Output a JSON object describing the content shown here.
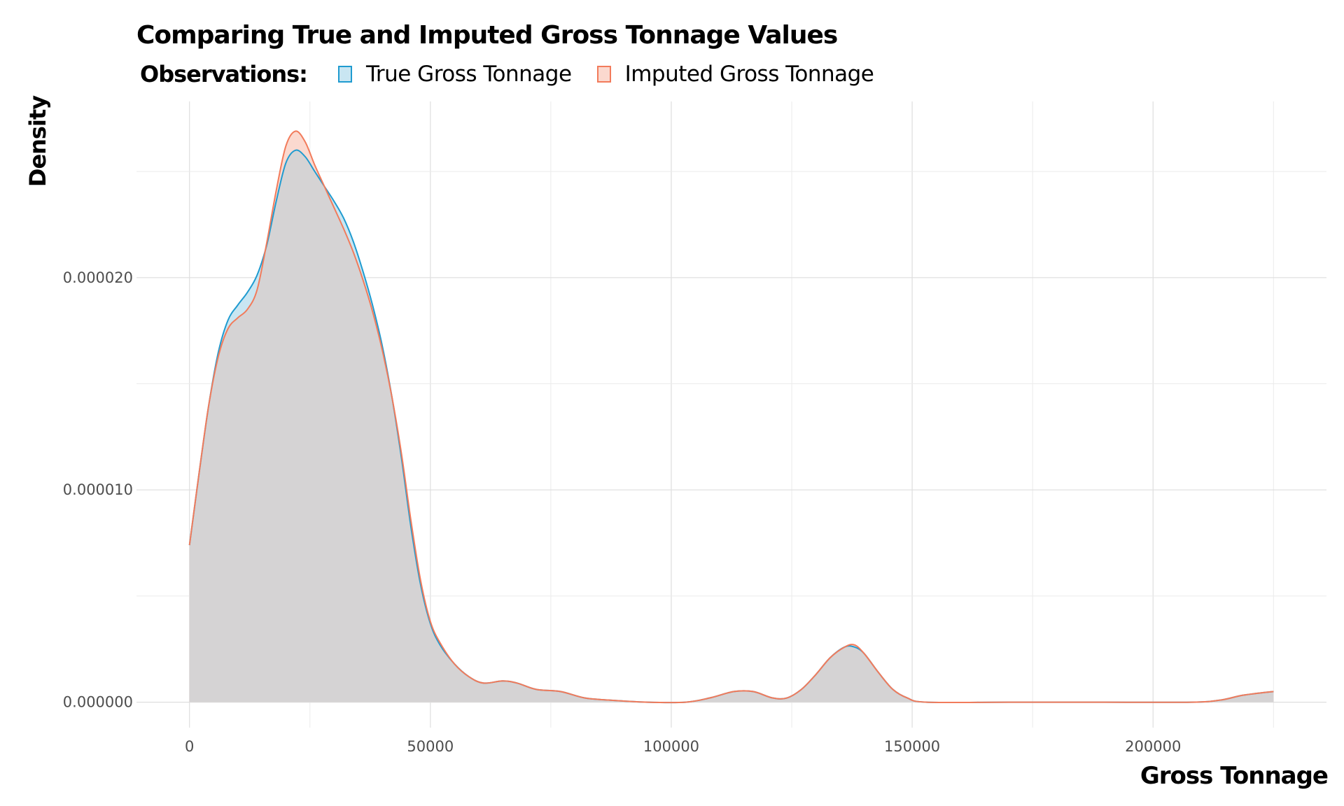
{
  "chart_data": {
    "type": "area",
    "title": "Comparing True and Imputed Gross Tonnage Values",
    "xlabel": "Gross Tonnage",
    "ylabel": "Density",
    "xlim": [
      -11000,
      236000
    ],
    "ylim": [
      -1.2e-06,
      2.83e-05
    ],
    "x_ticks": [
      0,
      50000,
      100000,
      150000,
      200000
    ],
    "x_tick_labels": [
      "0",
      "50000",
      "100000",
      "150000",
      "200000"
    ],
    "y_ticks": [
      0,
      1e-05,
      2e-05
    ],
    "y_tick_labels": [
      "0.000000",
      "0.000010",
      "0.000020"
    ],
    "grid": true,
    "legend": {
      "title": "Observations:",
      "position": "top"
    },
    "series": [
      {
        "name": "True Gross Tonnage",
        "line_color": "#1f9bd0",
        "fill_color": "#c9e6f2",
        "points": [
          [
            0,
            7.4e-06
          ],
          [
            2000,
            1.08e-05
          ],
          [
            4000,
            1.4e-05
          ],
          [
            6000,
            1.65e-05
          ],
          [
            8000,
            1.8e-05
          ],
          [
            10000,
            1.87e-05
          ],
          [
            12000,
            1.93e-05
          ],
          [
            14000,
            2.01e-05
          ],
          [
            16000,
            2.15e-05
          ],
          [
            18000,
            2.36e-05
          ],
          [
            20000,
            2.54e-05
          ],
          [
            22000,
            2.6e-05
          ],
          [
            24000,
            2.57e-05
          ],
          [
            26000,
            2.5e-05
          ],
          [
            28000,
            2.43e-05
          ],
          [
            30000,
            2.36e-05
          ],
          [
            32000,
            2.28e-05
          ],
          [
            34000,
            2.17e-05
          ],
          [
            36000,
            2.03e-05
          ],
          [
            38000,
            1.87e-05
          ],
          [
            40000,
            1.68e-05
          ],
          [
            42000,
            1.44e-05
          ],
          [
            44000,
            1.15e-05
          ],
          [
            46000,
            8.2e-06
          ],
          [
            48000,
            5.5e-06
          ],
          [
            50000,
            3.7e-06
          ],
          [
            52000,
            2.7e-06
          ],
          [
            55000,
            1.8e-06
          ],
          [
            58000,
            1.2e-06
          ],
          [
            61000,
            9e-07
          ],
          [
            65000,
            1e-06
          ],
          [
            68000,
            9e-07
          ],
          [
            72000,
            6e-07
          ],
          [
            77000,
            5e-07
          ],
          [
            82000,
            2e-07
          ],
          [
            87000,
            1e-07
          ],
          [
            95000,
            0.0
          ],
          [
            103000,
            0.0
          ],
          [
            108000,
            2e-07
          ],
          [
            113000,
            5e-07
          ],
          [
            117000,
            5e-07
          ],
          [
            121000,
            2e-07
          ],
          [
            124000,
            2e-07
          ],
          [
            127000,
            6e-07
          ],
          [
            130000,
            1.3e-06
          ],
          [
            133000,
            2.1e-06
          ],
          [
            136000,
            2.6e-06
          ],
          [
            138000,
            2.6e-06
          ],
          [
            140000,
            2.3e-06
          ],
          [
            143000,
            1.4e-06
          ],
          [
            146000,
            6e-07
          ],
          [
            149000,
            2e-07
          ],
          [
            153000,
            0.0
          ],
          [
            170000,
            0.0
          ],
          [
            190000,
            0.0
          ],
          [
            208000,
            0.0
          ],
          [
            214000,
            1e-07
          ],
          [
            218000,
            3e-07
          ],
          [
            221000,
            4e-07
          ],
          [
            225000,
            5e-07
          ]
        ]
      },
      {
        "name": "Imputed Gross Tonnage",
        "line_color": "#f27b5b",
        "fill_color": "#fbd9cf",
        "points": [
          [
            0,
            7.4e-06
          ],
          [
            2000,
            1.08e-05
          ],
          [
            4000,
            1.4e-05
          ],
          [
            6000,
            1.63e-05
          ],
          [
            8000,
            1.76e-05
          ],
          [
            10000,
            1.81e-05
          ],
          [
            12000,
            1.85e-05
          ],
          [
            14000,
            1.94e-05
          ],
          [
            16000,
            2.16e-05
          ],
          [
            18000,
            2.41e-05
          ],
          [
            20000,
            2.62e-05
          ],
          [
            22000,
            2.69e-05
          ],
          [
            24000,
            2.64e-05
          ],
          [
            26000,
            2.53e-05
          ],
          [
            28000,
            2.43e-05
          ],
          [
            30000,
            2.33e-05
          ],
          [
            32000,
            2.23e-05
          ],
          [
            34000,
            2.12e-05
          ],
          [
            36000,
            1.99e-05
          ],
          [
            38000,
            1.84e-05
          ],
          [
            40000,
            1.66e-05
          ],
          [
            42000,
            1.44e-05
          ],
          [
            44000,
            1.17e-05
          ],
          [
            46000,
            8.5e-06
          ],
          [
            48000,
            5.7e-06
          ],
          [
            50000,
            3.8e-06
          ],
          [
            52000,
            2.8e-06
          ],
          [
            55000,
            1.8e-06
          ],
          [
            58000,
            1.2e-06
          ],
          [
            61000,
            9e-07
          ],
          [
            65000,
            1e-06
          ],
          [
            68000,
            9e-07
          ],
          [
            72000,
            6e-07
          ],
          [
            77000,
            5e-07
          ],
          [
            82000,
            2e-07
          ],
          [
            87000,
            1e-07
          ],
          [
            95000,
            0.0
          ],
          [
            103000,
            0.0
          ],
          [
            108000,
            2e-07
          ],
          [
            113000,
            5e-07
          ],
          [
            117000,
            5e-07
          ],
          [
            121000,
            2e-07
          ],
          [
            124000,
            2e-07
          ],
          [
            127000,
            6e-07
          ],
          [
            130000,
            1.3e-06
          ],
          [
            133000,
            2.1e-06
          ],
          [
            136000,
            2.6e-06
          ],
          [
            138000,
            2.7e-06
          ],
          [
            140000,
            2.3e-06
          ],
          [
            143000,
            1.4e-06
          ],
          [
            146000,
            6e-07
          ],
          [
            149000,
            2e-07
          ],
          [
            153000,
            0.0
          ],
          [
            170000,
            0.0
          ],
          [
            190000,
            0.0
          ],
          [
            208000,
            0.0
          ],
          [
            214000,
            1e-07
          ],
          [
            218000,
            3e-07
          ],
          [
            221000,
            4e-07
          ],
          [
            225000,
            5e-07
          ]
        ]
      }
    ]
  }
}
